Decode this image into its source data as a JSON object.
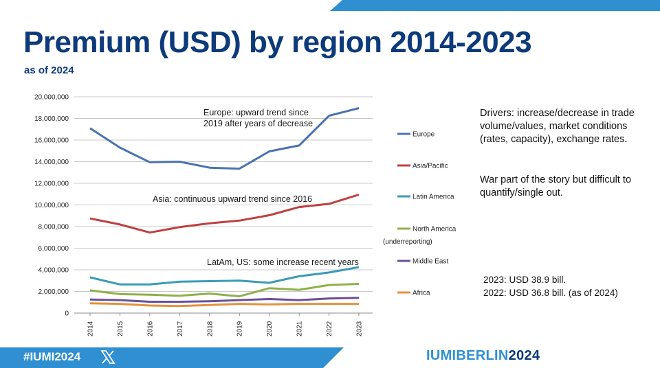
{
  "slide": {
    "title": "Premium (USD) by region 2014-2023",
    "subtitle": "as of 2024",
    "drivers_text": "Drivers: increase/decrease in trade volume/values, market conditions (rates, capacity), exchange rates.",
    "war_text": "War part of the story but difficult to quantify/single out.",
    "total_2023": "2023: USD 38.9 bill.",
    "total_2022": "2022: USD 36.8 bill. (as of 2024)",
    "hashtag": "#IUMI2024",
    "brand_part1": "IUMIBERLIN",
    "brand_part2": "2024"
  },
  "colors": {
    "brand_dark": "#0d3a7a",
    "brand_light": "#2f8fd0"
  },
  "chart_data": {
    "type": "line",
    "x": [
      2014,
      2015,
      2016,
      2017,
      2018,
      2019,
      2020,
      2021,
      2022,
      2023
    ],
    "x_tick_labels": [
      "2014",
      "2015",
      "2016",
      "2017",
      "2018",
      "2019",
      "2020",
      "2021",
      "2022",
      "2023"
    ],
    "ylim": [
      0,
      20000000
    ],
    "y_ticks": [
      0,
      2000000,
      4000000,
      6000000,
      8000000,
      10000000,
      12000000,
      14000000,
      16000000,
      18000000,
      20000000
    ],
    "y_tick_labels": [
      "0",
      "2,000,000",
      "4,000,000",
      "6,000,000",
      "8,000,000",
      "10,000,000",
      "12,000,000",
      "14,000,000",
      "16,000,000",
      "18,000,000",
      "20,000,000"
    ],
    "grid": "horizontal",
    "legend_position": "right",
    "series": [
      {
        "name": "Europe",
        "color": "#4a72b0",
        "values": [
          17100000,
          15300000,
          13950000,
          14000000,
          13450000,
          13350000,
          14950000,
          15500000,
          18250000,
          18950000
        ]
      },
      {
        "name": "Asia/Pacific",
        "color": "#bf4040",
        "values": [
          8750000,
          8200000,
          7450000,
          7950000,
          8300000,
          8550000,
          9050000,
          9800000,
          10100000,
          10950000
        ]
      },
      {
        "name": "Latin America",
        "color": "#3a9ab5",
        "values": [
          3300000,
          2650000,
          2650000,
          2900000,
          2950000,
          3000000,
          2800000,
          3400000,
          3750000,
          4250000
        ]
      },
      {
        "name": "North America",
        "name_note": "(underreporting)",
        "color": "#8fb04a",
        "values": [
          2100000,
          1750000,
          1700000,
          1600000,
          1800000,
          1550000,
          2300000,
          2150000,
          2600000,
          2700000
        ]
      },
      {
        "name": "Middle East",
        "color": "#6b4f96",
        "values": [
          1250000,
          1200000,
          1050000,
          1050000,
          1100000,
          1200000,
          1300000,
          1200000,
          1350000,
          1400000
        ]
      },
      {
        "name": "Africa",
        "color": "#e3923a",
        "values": [
          900000,
          850000,
          700000,
          650000,
          750000,
          850000,
          800000,
          850000,
          850000,
          850000
        ]
      }
    ],
    "annotations": [
      {
        "id": "europe",
        "lines": [
          "Europe: upward trend since",
          "2019 after years of decrease"
        ]
      },
      {
        "id": "asia",
        "lines": [
          "Asia: continuous upward trend since 2016"
        ]
      },
      {
        "id": "latam",
        "lines": [
          "LatAm, US: some increase recent years"
        ]
      }
    ]
  }
}
